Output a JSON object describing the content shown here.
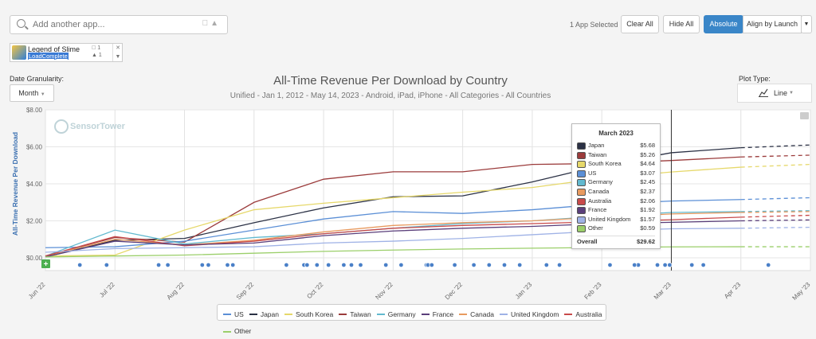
{
  "search": {
    "placeholder": "Add another app..."
  },
  "toolbar": {
    "selected_text": "1 App Selected",
    "clear_all": "Clear All",
    "hide_all": "Hide All",
    "absolute": "Absolute",
    "align_by_launch": "Align by Launch"
  },
  "app": {
    "name": "Legend of Slime",
    "status": "LoadComplete",
    "ios_count": "1",
    "android_count": "1"
  },
  "controls": {
    "date_granularity_label": "Date Granularity:",
    "date_granularity_value": "Month",
    "plot_type_label": "Plot Type:",
    "plot_type_value": "Line"
  },
  "watermark": "SensorTower",
  "colors": {
    "US": "#5b8fd6",
    "Japan": "#2b3145",
    "South Korea": "#e6d86a",
    "Taiwan": "#9b3b3b",
    "Germany": "#62b9cf",
    "France": "#5a3e7a",
    "Canada": "#e89a5f",
    "United Kingdom": "#9fb2e6",
    "Australia": "#c84a4a",
    "Other": "#9bcf6a"
  },
  "chart_data": {
    "type": "line",
    "title": "All-Time Revenue Per Download by Country",
    "subtitle": "Unified - Jan 1, 2012 - May 14, 2023 - Android, iPad, iPhone - All Categories - All Countries",
    "ylabel": "All-Time Revenue Per Download",
    "ylim": [
      0,
      8
    ],
    "yticks": [
      "$0.00",
      "$2.00",
      "$4.00",
      "$6.00",
      "$8.00"
    ],
    "categories": [
      "Jun '22",
      "Jul '22",
      "Aug '22",
      "Sep '22",
      "Oct '22",
      "Nov '22",
      "Dec '22",
      "Jan '23",
      "Feb '23",
      "Mar '23",
      "Apr '23",
      "May '23"
    ],
    "forecast_from_index": 10,
    "series": [
      {
        "name": "Japan",
        "values": [
          0.05,
          0.95,
          1.05,
          1.9,
          2.7,
          3.3,
          3.35,
          4.1,
          5.0,
          5.68,
          5.95,
          6.1
        ]
      },
      {
        "name": "Taiwan",
        "values": [
          0.1,
          1.1,
          0.85,
          3.0,
          4.25,
          4.65,
          4.65,
          5.05,
          5.1,
          5.26,
          5.45,
          5.55
        ]
      },
      {
        "name": "South Korea",
        "values": [
          0.1,
          0.15,
          1.5,
          2.6,
          2.95,
          3.25,
          3.55,
          3.8,
          4.3,
          4.64,
          4.9,
          5.05
        ]
      },
      {
        "name": "US",
        "values": [
          0.55,
          0.6,
          0.9,
          1.5,
          2.1,
          2.5,
          2.4,
          2.6,
          2.9,
          3.07,
          3.15,
          3.25
        ]
      },
      {
        "name": "Germany",
        "values": [
          0.1,
          1.5,
          0.75,
          1.1,
          1.3,
          1.6,
          1.85,
          2.0,
          2.25,
          2.45,
          2.5,
          2.55
        ]
      },
      {
        "name": "Canada",
        "values": [
          0.1,
          1.0,
          0.7,
          0.95,
          1.4,
          1.75,
          1.9,
          2.0,
          2.2,
          2.37,
          2.45,
          2.5
        ]
      },
      {
        "name": "Australia",
        "values": [
          0.1,
          1.15,
          0.65,
          0.9,
          1.3,
          1.6,
          1.75,
          1.85,
          1.95,
          2.06,
          2.2,
          2.3
        ]
      },
      {
        "name": "France",
        "values": [
          0.05,
          0.9,
          0.7,
          0.8,
          1.2,
          1.45,
          1.6,
          1.7,
          1.85,
          1.92,
          2.0,
          2.05
        ]
      },
      {
        "name": "United Kingdom",
        "values": [
          0.3,
          0.5,
          0.55,
          0.6,
          0.8,
          0.9,
          1.05,
          1.25,
          1.45,
          1.57,
          1.6,
          1.65
        ]
      },
      {
        "name": "Other",
        "values": [
          0.05,
          0.1,
          0.15,
          0.25,
          0.35,
          0.42,
          0.48,
          0.52,
          0.56,
          0.59,
          0.6,
          0.6
        ]
      }
    ],
    "event_markers": [
      [
        "+"
      ],
      [
        "o"
      ]
    ],
    "tooltip": {
      "title": "March 2023",
      "rows": [
        {
          "name": "Japan",
          "value": "$5.68"
        },
        {
          "name": "Taiwan",
          "value": "$5.26"
        },
        {
          "name": "South Korea",
          "value": "$4.64"
        },
        {
          "name": "US",
          "value": "$3.07"
        },
        {
          "name": "Germany",
          "value": "$2.45"
        },
        {
          "name": "Canada",
          "value": "$2.37"
        },
        {
          "name": "Australia",
          "value": "$2.06"
        },
        {
          "name": "France",
          "value": "$1.92"
        },
        {
          "name": "United Kingdom",
          "value": "$1.57"
        },
        {
          "name": "Other",
          "value": "$0.59"
        }
      ],
      "total_label": "Overall",
      "total_value": "$29.62"
    },
    "legend": [
      "US",
      "Japan",
      "South Korea",
      "Taiwan",
      "Germany",
      "France",
      "Canada",
      "United Kingdom",
      "Australia",
      "Other"
    ]
  }
}
